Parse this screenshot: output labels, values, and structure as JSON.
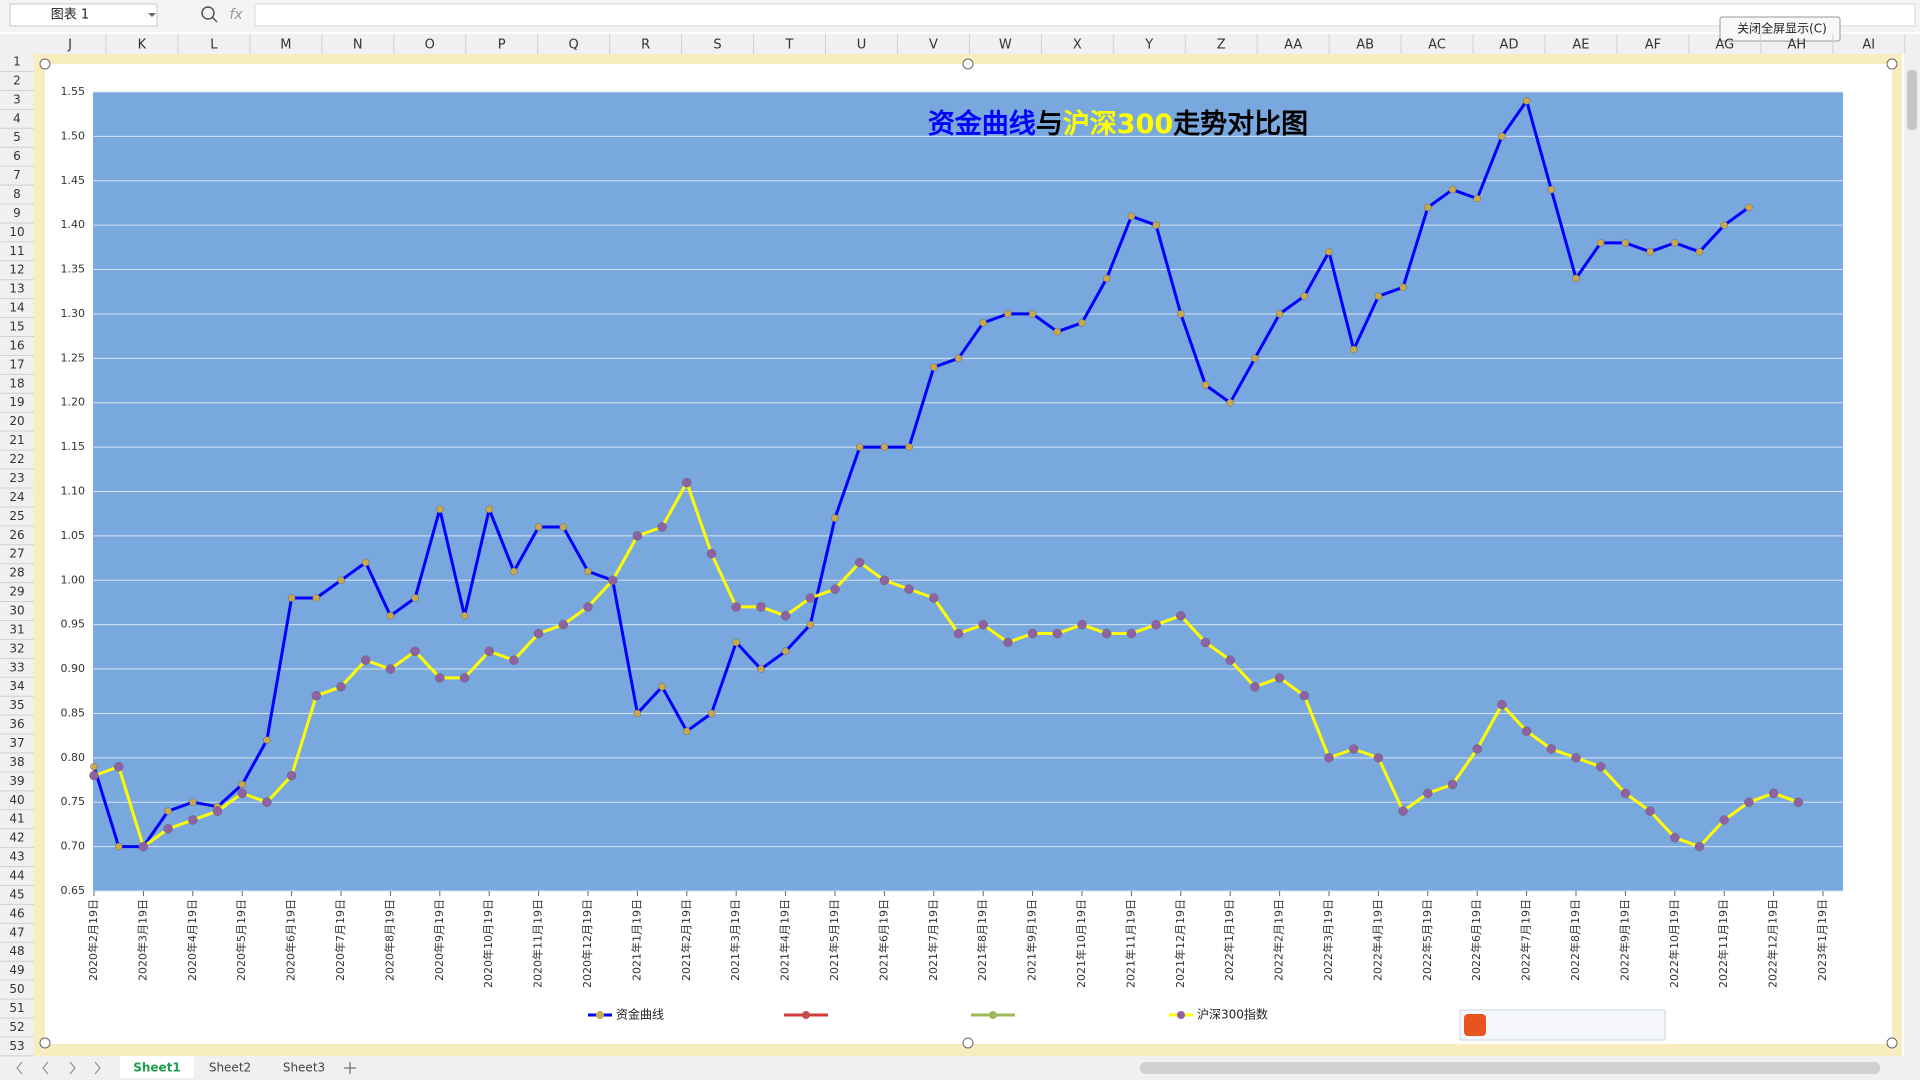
{
  "ui": {
    "name_box": "图表 1",
    "fx": "fx",
    "close_fullscreen": "关闭全屏显示(C)",
    "columns": [
      "J",
      "K",
      "L",
      "M",
      "N",
      "O",
      "P",
      "Q",
      "R",
      "S",
      "T",
      "U",
      "V",
      "W",
      "X",
      "Y",
      "Z",
      "AA",
      "AB",
      "AC",
      "AD",
      "AE",
      "AF",
      "AG",
      "AH",
      "AI"
    ],
    "rows": [
      1,
      2,
      3,
      4,
      5,
      6,
      7,
      8,
      9,
      10,
      11,
      12,
      13,
      14,
      15,
      16,
      17,
      18,
      19,
      20,
      21,
      22,
      23,
      24,
      25,
      26,
      27,
      28,
      29,
      30,
      31,
      32,
      33,
      34,
      35,
      36,
      37,
      38,
      39,
      40,
      41,
      42,
      43,
      44,
      45,
      46,
      47,
      48,
      49,
      50,
      51,
      52,
      53
    ],
    "sheets": [
      "Sheet1",
      "Sheet2",
      "Sheet3"
    ]
  },
  "chart_data": {
    "type": "line",
    "title_parts": [
      {
        "text": "资金曲线",
        "color": "#0000ff"
      },
      {
        "text": "与",
        "color": "#000000"
      },
      {
        "text": "沪深300",
        "color": "#ffff00"
      },
      {
        "text": "走势对比图",
        "color": "#000000"
      }
    ],
    "categories": [
      "2020年2月19日",
      null,
      "2020年3月19日",
      null,
      "2020年4月19日",
      null,
      "2020年5月19日",
      null,
      "2020年6月19日",
      null,
      "2020年7月19日",
      null,
      "2020年8月19日",
      null,
      "2020年9月19日",
      null,
      "2020年10月19日",
      null,
      "2020年11月19日",
      null,
      "2020年12月19日",
      null,
      "2021年1月19日",
      null,
      "2021年2月19日",
      null,
      "2021年3月19日",
      null,
      "2021年4月19日",
      null,
      "2021年5月19日",
      null,
      "2021年6月19日",
      null,
      "2021年7月19日",
      null,
      "2021年8月19日",
      null,
      "2021年9月19日",
      null,
      "2021年10月19日",
      null,
      "2021年11月19日",
      null,
      "2021年12月19日",
      null,
      "2022年1月19日",
      null,
      "2022年2月19日",
      null,
      "2022年3月19日",
      null,
      "2022年4月19日",
      null,
      "2022年5月19日",
      null,
      "2022年6月19日",
      null,
      "2022年7月19日",
      null,
      "2022年8月19日",
      null,
      "2022年9月19日",
      null,
      "2022年10月19日",
      null,
      "2022年11月19日",
      null,
      "2022年12月19日",
      null,
      "2023年1月19日"
    ],
    "series": [
      {
        "name": "资金曲线",
        "color": "#0000ff",
        "marker_color": "#c9a94c",
        "values": [
          0.79,
          0.7,
          0.7,
          0.74,
          0.75,
          0.745,
          0.77,
          0.82,
          0.98,
          0.98,
          1.0,
          1.02,
          0.96,
          0.98,
          1.08,
          0.96,
          1.08,
          1.01,
          1.06,
          1.06,
          1.01,
          1.0,
          0.85,
          0.88,
          0.83,
          0.85,
          0.93,
          0.9,
          0.92,
          0.95,
          1.07,
          1.15,
          1.15,
          1.15,
          1.24,
          1.25,
          1.29,
          1.3,
          1.3,
          1.28,
          1.29,
          1.34,
          1.41,
          1.4,
          1.3,
          1.22,
          1.2,
          1.25,
          1.3,
          1.32,
          1.37,
          1.26,
          1.32,
          1.33,
          1.42,
          1.44,
          1.43,
          1.5,
          1.54,
          1.44,
          1.34,
          1.38,
          1.38,
          1.37,
          1.38,
          1.37,
          1.4,
          1.42,
          null,
          null,
          null
        ]
      },
      {
        "name": "沪深300指数",
        "color": "#ffff00",
        "marker_color": "#8f62a6",
        "values": [
          0.78,
          0.79,
          0.7,
          0.72,
          0.73,
          0.74,
          0.76,
          0.75,
          0.78,
          0.87,
          0.88,
          0.91,
          0.9,
          0.92,
          0.89,
          0.89,
          0.92,
          0.91,
          0.94,
          0.95,
          0.97,
          1.0,
          1.05,
          1.06,
          1.11,
          1.03,
          0.97,
          0.97,
          0.96,
          0.98,
          0.99,
          1.02,
          1.0,
          0.99,
          0.98,
          0.94,
          0.95,
          0.93,
          0.94,
          0.94,
          0.95,
          0.94,
          0.94,
          0.95,
          0.96,
          0.93,
          0.91,
          0.88,
          0.89,
          0.87,
          0.8,
          0.81,
          0.8,
          0.74,
          0.76,
          0.77,
          0.81,
          0.86,
          0.83,
          0.81,
          0.8,
          0.79,
          0.76,
          0.74,
          0.71,
          0.7,
          0.73,
          0.75,
          0.76,
          0.75,
          null
        ]
      }
    ],
    "ylim": [
      0.65,
      1.55
    ],
    "yticks": [
      0.65,
      {
        "value": 0.7,
        "label": "0.70"
      },
      0.75,
      {
        "value": 0.8,
        "label": "0.80"
      },
      0.85,
      {
        "value": 0.9,
        "label": "0.90"
      },
      0.95,
      {
        "value": 1.0,
        "label": "1.00"
      },
      1.05,
      {
        "value": 1.1,
        "label": "1.10"
      },
      1.15,
      {
        "value": 1.2,
        "label": "1.20"
      },
      1.25,
      {
        "value": 1.3,
        "label": "1.30"
      },
      1.35,
      {
        "value": 1.4,
        "label": "1.40"
      },
      1.45,
      {
        "value": 1.5,
        "label": "1.50"
      },
      1.55
    ],
    "grid": true,
    "plot_background": "#79a8de",
    "legend": "bottom"
  }
}
